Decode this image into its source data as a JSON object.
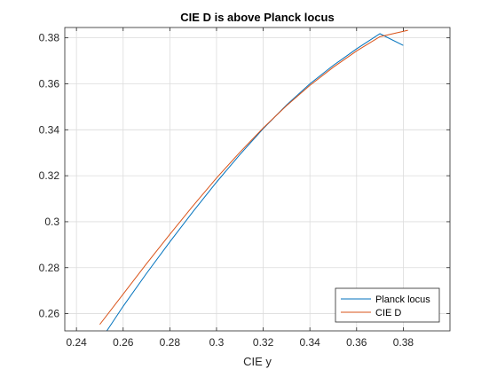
{
  "chart_data": {
    "type": "line",
    "title": "CIE D is above Planck locus",
    "xlabel": "CIE y",
    "ylabel": "",
    "xlim": [
      0.235,
      0.4
    ],
    "ylim": [
      0.2525,
      0.3845
    ],
    "xticks": [
      0.24,
      0.26,
      0.28,
      0.3,
      0.32,
      0.34,
      0.36,
      0.38
    ],
    "xtick_labels": [
      "0.24",
      "0.26",
      "0.28",
      "0.3",
      "0.32",
      "0.34",
      "0.36",
      "0.38"
    ],
    "yticks": [
      0.26,
      0.28,
      0.3,
      0.32,
      0.34,
      0.36,
      0.38
    ],
    "ytick_labels": [
      "0.26",
      "0.28",
      "0.3",
      "0.32",
      "0.34",
      "0.36",
      "0.38"
    ],
    "grid": true,
    "legend_position": "bottom-right",
    "series": [
      {
        "name": "Planck locus",
        "color": "#0072BD",
        "x": [
          0.253,
          0.26,
          0.27,
          0.28,
          0.29,
          0.3,
          0.31,
          0.32,
          0.33,
          0.34,
          0.35,
          0.36,
          0.37,
          0.38
        ],
        "y": [
          0.2525,
          0.2632,
          0.2775,
          0.2912,
          0.3045,
          0.3172,
          0.3292,
          0.3405,
          0.3508,
          0.36,
          0.368,
          0.3752,
          0.3818,
          0.3767
        ]
      },
      {
        "name": "CIE D",
        "color": "#D95319",
        "x": [
          0.25,
          0.26,
          0.27,
          0.28,
          0.29,
          0.3,
          0.31,
          0.32,
          0.33,
          0.34,
          0.35,
          0.36,
          0.37,
          0.382
        ],
        "y": [
          0.2553,
          0.2685,
          0.2817,
          0.2945,
          0.307,
          0.319,
          0.3302,
          0.3408,
          0.3505,
          0.3593,
          0.3672,
          0.3743,
          0.3805,
          0.3833
        ]
      }
    ]
  }
}
